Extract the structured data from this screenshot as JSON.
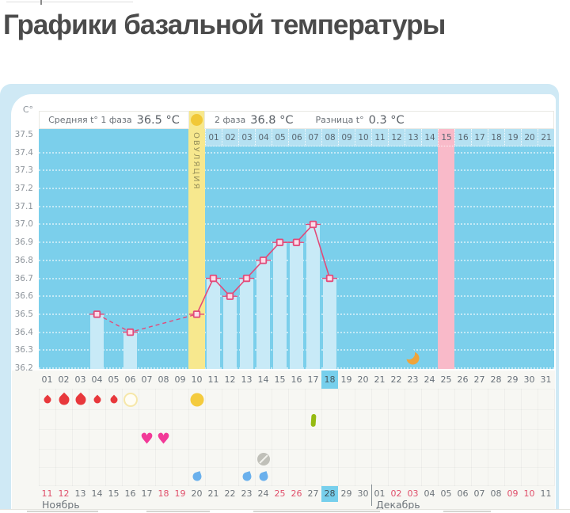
{
  "title": "Графики базальной температуры",
  "chart_data": {
    "type": "bar+line",
    "title": "Графики базальной температуры",
    "ylim": [
      36.2,
      37.5
    ],
    "y_ticks": [
      37.5,
      37.4,
      37.3,
      37.2,
      37.1,
      37.0,
      36.9,
      36.8,
      36.7,
      36.6,
      36.5,
      36.4,
      36.3,
      36.2
    ],
    "x_range_days": [
      1,
      31
    ],
    "points": [
      {
        "day": 4,
        "temp": 36.5
      },
      {
        "day": 6,
        "temp": 36.4
      },
      {
        "day": 10,
        "temp": 36.5
      },
      {
        "day": 11,
        "temp": 36.7
      },
      {
        "day": 12,
        "temp": 36.6
      },
      {
        "day": 13,
        "temp": 36.7
      },
      {
        "day": 14,
        "temp": 36.8
      },
      {
        "day": 15,
        "temp": 36.9
      },
      {
        "day": 16,
        "temp": 36.9
      },
      {
        "day": 17,
        "temp": 37.0
      },
      {
        "day": 18,
        "temp": 36.7
      }
    ],
    "bar_days": [
      4,
      6,
      11,
      12,
      13,
      14,
      15,
      16,
      17,
      18
    ],
    "dashed_segment_days": [
      4,
      6,
      10
    ],
    "solid_segment_days": [
      10,
      11,
      12,
      13,
      14,
      15,
      16,
      17,
      18
    ],
    "ovulation_day": 10,
    "phase2_highlight_day": 15,
    "phase2_highlight_cycle_day": 25,
    "current_cycle_day": 18,
    "moon_day": 23,
    "phase1_avg": 36.5,
    "phase2_avg": 36.8,
    "temp_diff": 0.3,
    "grid": "dotted-horizontal",
    "legend_position": "top"
  },
  "axis": {
    "unit": "C°",
    "labels": [
      "37.5",
      "37.4",
      "37.3",
      "37.2",
      "37.1",
      "37.0",
      "36.9",
      "36.8",
      "36.7",
      "36.6",
      "36.5",
      "36.4",
      "36.3",
      "36.2"
    ]
  },
  "header": {
    "phase1_label": "Средняя t° 1 фаза",
    "phase1_value": "36.5 °C",
    "ovulation_text": "ОВУЛЯЦИЯ",
    "phase2_label": "2 фаза",
    "phase2_value": "36.8 °C",
    "diff_label": "Разница t°",
    "diff_value": "0.3 °C"
  },
  "phase2_row": {
    "days": [
      "01",
      "02",
      "03",
      "04",
      "05",
      "06",
      "07",
      "08",
      "09",
      "10",
      "11",
      "12",
      "13",
      "14",
      "15",
      "16",
      "17",
      "18",
      "19",
      "20",
      "21"
    ],
    "highlight": "15"
  },
  "day_row": {
    "days": [
      "01",
      "02",
      "03",
      "04",
      "05",
      "06",
      "07",
      "08",
      "09",
      "10",
      "11",
      "12",
      "13",
      "14",
      "15",
      "16",
      "17",
      "18",
      "19",
      "20",
      "21",
      "22",
      "23",
      "24",
      "25",
      "26",
      "27",
      "28",
      "29",
      "30",
      "31"
    ],
    "highlight": "18"
  },
  "symbols": {
    "rows": [
      {
        "name": "menstruation",
        "items": [
          {
            "day": 1,
            "icon": "drop-red",
            "size": "small"
          },
          {
            "day": 2,
            "icon": "drop-red",
            "size": "large"
          },
          {
            "day": 3,
            "icon": "drop-red",
            "size": "large"
          },
          {
            "day": 4,
            "icon": "drop-red",
            "size": "small"
          },
          {
            "day": 5,
            "icon": "drop-red",
            "size": "small"
          },
          {
            "day": 6,
            "icon": "circle-outline",
            "size": ""
          },
          {
            "day": 10,
            "icon": "circle-yellow",
            "size": ""
          }
        ]
      },
      {
        "name": "medication",
        "items": [
          {
            "day": 17,
            "icon": "capsule-green",
            "size": ""
          }
        ]
      },
      {
        "name": "intimacy",
        "items": [
          {
            "day": 7,
            "icon": "heart-pink",
            "size": ""
          },
          {
            "day": 8,
            "icon": "heart-pink",
            "size": ""
          }
        ]
      },
      {
        "name": "pill",
        "items": [
          {
            "day": 14,
            "icon": "pill-gray-crossed",
            "size": ""
          }
        ]
      },
      {
        "name": "discharge",
        "items": [
          {
            "day": 10,
            "icon": "drop-blue",
            "size": ""
          },
          {
            "day": 13,
            "icon": "drop-blue",
            "size": ""
          },
          {
            "day": 14,
            "icon": "drop-blue",
            "size": ""
          }
        ]
      }
    ]
  },
  "calendar": {
    "dates": [
      "11",
      "12",
      "13",
      "14",
      "15",
      "16",
      "17",
      "18",
      "19",
      "20",
      "21",
      "22",
      "23",
      "24",
      "25",
      "26",
      "27",
      "28",
      "29",
      "30",
      "01",
      "02",
      "03",
      "04",
      "05",
      "06",
      "07",
      "08",
      "09",
      "10",
      "11"
    ],
    "red_indexes": [
      0,
      1,
      7,
      8,
      14,
      15,
      21,
      22,
      28,
      29
    ],
    "highlight_index": 17,
    "months": [
      "Ноябрь",
      "Декабрь"
    ],
    "month2_start_index": 20
  },
  "colors": {
    "accent_line": "#e24a79",
    "plot_blue": "#7bcfeb",
    "bar": "#c8eaf7",
    "ovulation_yellow": "#f7e88e",
    "ovulation_circle": "#f1c838",
    "pink_column": "#f9bac9",
    "highlight_cell": "#77cfec",
    "weekend_red": "#e0506b",
    "moon_orange": "#efa43b"
  }
}
